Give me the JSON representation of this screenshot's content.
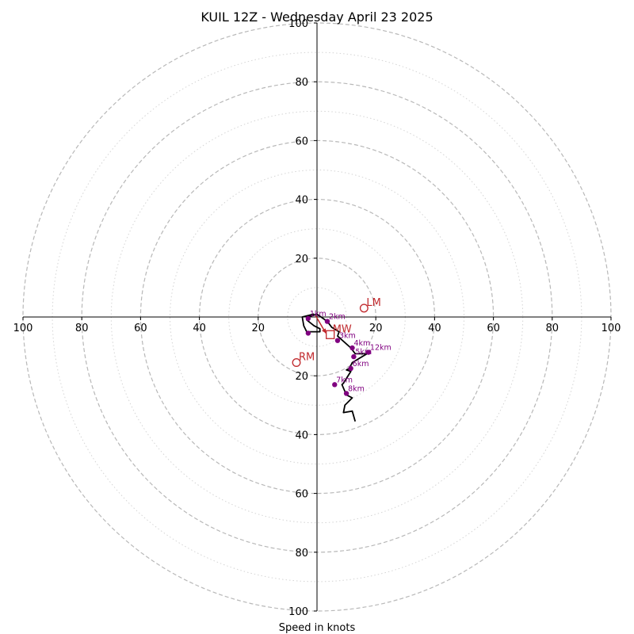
{
  "chart_data": {
    "type": "scatter",
    "title": "KUIL 12Z - Wednesday April 23 2025",
    "xlabel": "Speed in knots",
    "ylabel": "",
    "xlim": [
      -100,
      100
    ],
    "ylim": [
      -100,
      100
    ],
    "major_rings": [
      20,
      40,
      60,
      80,
      100
    ],
    "minor_rings": [
      10,
      30,
      50,
      70,
      90
    ],
    "x_tick_labels": [
      "100",
      "80",
      "60",
      "40",
      "20",
      "20",
      "40",
      "60",
      "80",
      "100"
    ],
    "y_tick_labels": [
      "100",
      "80",
      "60",
      "40",
      "20",
      "20",
      "40",
      "60",
      "80",
      "100"
    ],
    "colors": {
      "hodograph": "#000000",
      "height_markers": "#800080",
      "motion": "#c0282c",
      "major_ring": "#b8b8b8",
      "minor_ring": "#d4d4d4"
    },
    "hodograph_trace": [
      [
        -1,
        1
      ],
      [
        -5,
        0
      ],
      [
        -4.5,
        -3
      ],
      [
        -3.5,
        -5
      ],
      [
        1,
        -5
      ],
      [
        1,
        -4
      ],
      [
        -1,
        -3
      ],
      [
        -3.5,
        -1
      ],
      [
        -3,
        0
      ],
      [
        0,
        1
      ],
      [
        3.5,
        -1.5
      ],
      [
        5,
        -3.5
      ],
      [
        7.5,
        -5
      ],
      [
        7,
        -6.5
      ],
      [
        11.5,
        -10.5
      ],
      [
        13,
        -12.5
      ],
      [
        17,
        -12.5
      ],
      [
        12,
        -15.5
      ],
      [
        11,
        -17.5
      ],
      [
        10,
        -18
      ],
      [
        11.5,
        -18.5
      ],
      [
        9,
        -22.5
      ],
      [
        8.5,
        -23
      ],
      [
        10,
        -26.5
      ],
      [
        12,
        -27.5
      ],
      [
        9.5,
        -30
      ],
      [
        9,
        -32.5
      ],
      [
        12,
        -32
      ],
      [
        13,
        -35.5
      ]
    ],
    "height_markers": [
      {
        "label": "1km",
        "x": -3,
        "y": -0.5
      },
      {
        "label": "2km",
        "x": 3.5,
        "y": -1.5
      },
      {
        "label": "3km",
        "x": 7,
        "y": -8
      },
      {
        "label": "4km",
        "x": 12,
        "y": -10.5
      },
      {
        "label": "5km",
        "x": 12.5,
        "y": -13.5
      },
      {
        "label": "6km",
        "x": 11.5,
        "y": -17.5
      },
      {
        "label": "7km",
        "x": 6,
        "y": -23
      },
      {
        "label": "8km",
        "x": 10,
        "y": -26
      },
      {
        "label": "12km",
        "x": 17.5,
        "y": -12
      },
      {
        "label": "",
        "x": -3,
        "y": -5.5
      }
    ],
    "storm_motion": [
      {
        "label": "LM",
        "x": 16,
        "y": 3,
        "marker": "circle"
      },
      {
        "label": "RM",
        "x": -7,
        "y": -15.5,
        "marker": "circle"
      },
      {
        "label": "MW",
        "x": 4.5,
        "y": -6,
        "marker": "square"
      }
    ],
    "shear_vector": {
      "from": [
        -0.5,
        0.5
      ],
      "to": [
        3,
        -5.5
      ]
    }
  }
}
